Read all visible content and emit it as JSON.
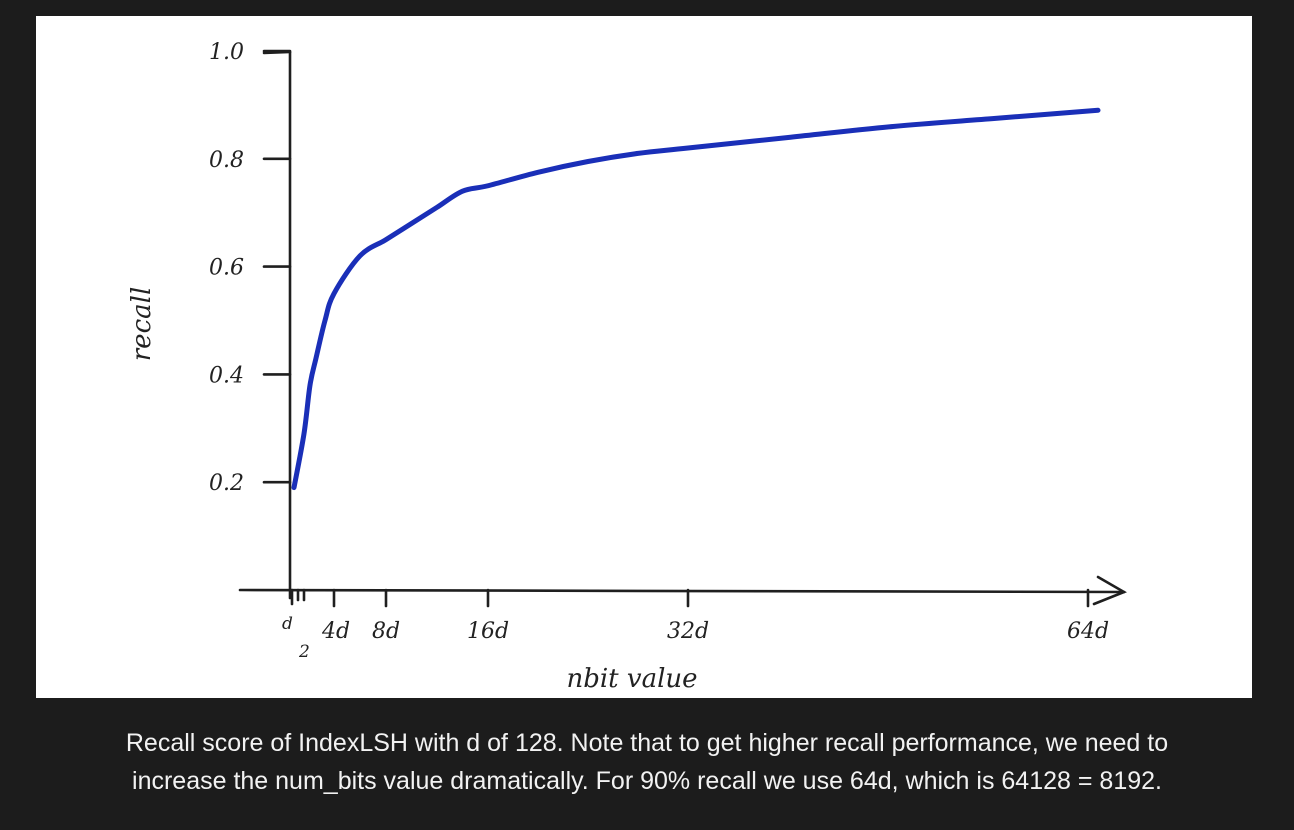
{
  "chart_data": {
    "type": "line",
    "xlabel": "nbit value",
    "ylabel": "recall",
    "x_tick_labels": [
      "d",
      "2",
      "4d",
      "8d",
      "16d",
      "32d",
      "64d"
    ],
    "y_tick_labels": [
      "0.2",
      "0.4",
      "0.6",
      "0.8",
      "1.0"
    ],
    "ylim": [
      0,
      1.0
    ],
    "xlim": [
      0,
      64
    ],
    "grid": false,
    "series": [
      {
        "color": "#1a2fb8",
        "x": [
          0.5,
          1,
          1.5,
          2,
          3,
          4,
          6,
          8,
          10,
          12,
          14,
          16,
          20,
          24,
          28,
          32,
          40,
          48,
          56,
          64
        ],
        "y": [
          0.19,
          0.29,
          0.38,
          0.43,
          0.5,
          0.55,
          0.62,
          0.65,
          0.68,
          0.71,
          0.74,
          0.75,
          0.775,
          0.795,
          0.81,
          0.82,
          0.84,
          0.86,
          0.875,
          0.89
        ]
      }
    ]
  },
  "caption": {
    "line1": "Recall score of IndexLSH with d of 128. Note that to get higher recall performance, we need to",
    "line2": "increase the num_bits value dramatically. For 90% recall we use 64d, which is 64128 = 8192."
  }
}
